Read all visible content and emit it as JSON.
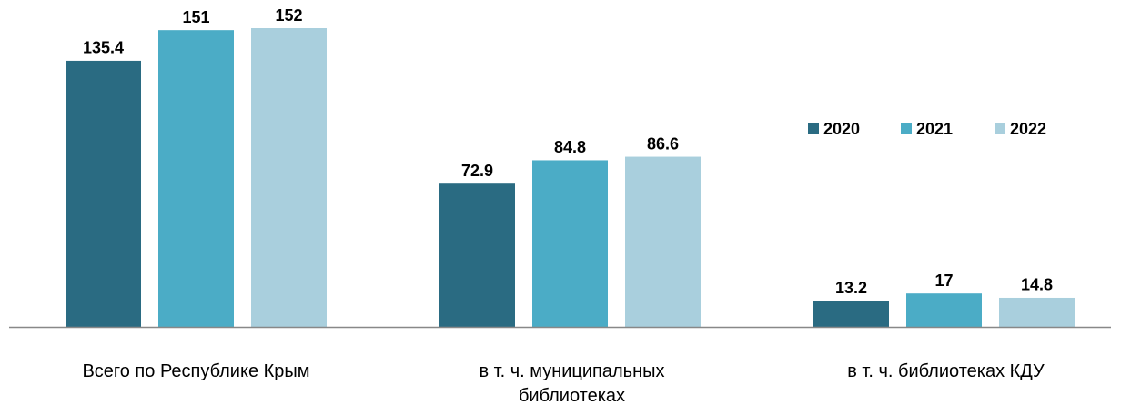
{
  "chart_data": {
    "type": "bar",
    "categories": [
      "Всего по Республике Крым",
      "в т. ч. муниципальных библиотеках",
      "в т. ч. библиотеках КДУ"
    ],
    "series": [
      {
        "name": "2020",
        "color": "#2a6b82",
        "values": [
          135.4,
          72.9,
          13.2
        ]
      },
      {
        "name": "2021",
        "color": "#4bacc6",
        "values": [
          151,
          84.8,
          17
        ]
      },
      {
        "name": "2022",
        "color": "#a9cfdd",
        "values": [
          152,
          86.6,
          14.8
        ]
      }
    ],
    "ylim": [
      0,
      152
    ],
    "legend": "right"
  }
}
